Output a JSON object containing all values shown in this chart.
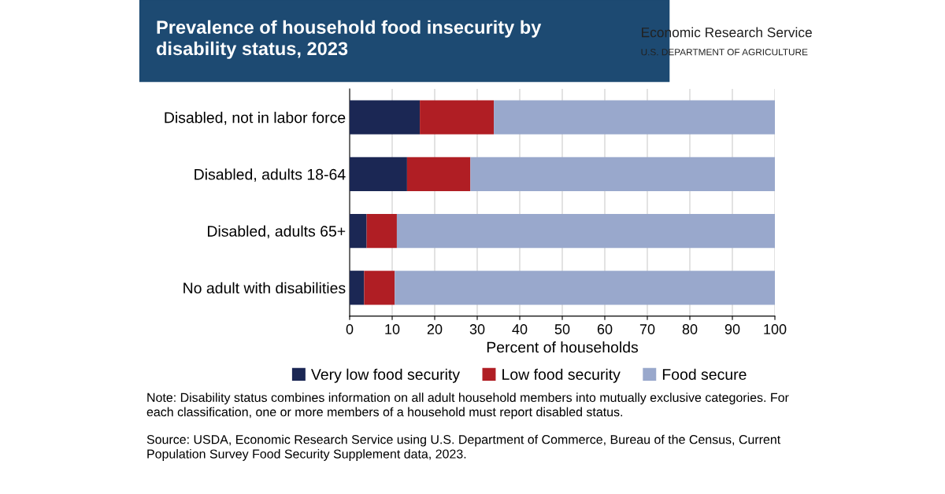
{
  "chart_data": {
    "type": "bar",
    "orientation": "horizontal",
    "stacked": true,
    "title": "Prevalence of household food insecurity by disability status, 2023",
    "xlabel": "Percent of households",
    "categories": [
      "Disabled, not in labor force",
      "Disabled, adults 18-64",
      "Disabled, adults 65+",
      "No adult with disabilities"
    ],
    "series": [
      {
        "name": "Very low food security",
        "color": "#1b2754",
        "values": [
          16.5,
          13.5,
          4.0,
          3.4
        ]
      },
      {
        "name": "Low food security",
        "color": "#b01e24",
        "values": [
          17.4,
          14.9,
          7.1,
          7.2
        ]
      },
      {
        "name": "Food secure",
        "color": "#99a8cc",
        "values": [
          66.1,
          71.6,
          88.9,
          89.4
        ]
      }
    ],
    "xlim": [
      0,
      100
    ],
    "xticks": [
      0,
      10,
      20,
      30,
      40,
      50,
      60,
      70,
      80,
      90,
      100
    ],
    "grid": "x",
    "legend": "bottom",
    "annotations": [
      "Economic Research Service",
      "U.S. DEPARTMENT OF AGRICULTURE",
      "Note: Disability status combines information on all adult household members into mutually exclusive categories. For each classification, one or more members of a household must report disabled status.",
      "Source: USDA, Economic Research Service using U.S. Department of Commerce, Bureau of the Census, Current Population Survey Food Security Supplement data, 2023."
    ]
  }
}
